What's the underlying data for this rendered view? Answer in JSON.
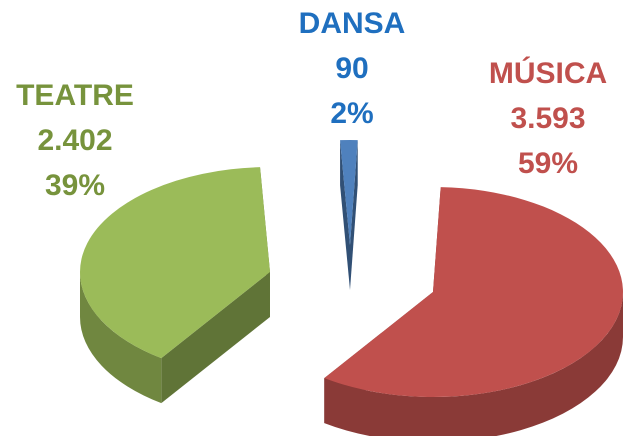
{
  "chart_data": {
    "type": "pie3d",
    "categories": [
      "DANSA",
      "MÚSICA",
      "TEATRE"
    ],
    "values": [
      90,
      3593,
      2402
    ],
    "value_labels": [
      "90",
      "3.593",
      "2.402"
    ],
    "percentages": [
      2,
      59,
      39
    ],
    "percentage_labels": [
      "2%",
      "59%",
      "39%"
    ],
    "colors": [
      "#4f81bd",
      "#c0504d",
      "#9bbb59"
    ],
    "label_colors": [
      "#1f6fbf",
      "#c0504d",
      "#77933c"
    ]
  }
}
